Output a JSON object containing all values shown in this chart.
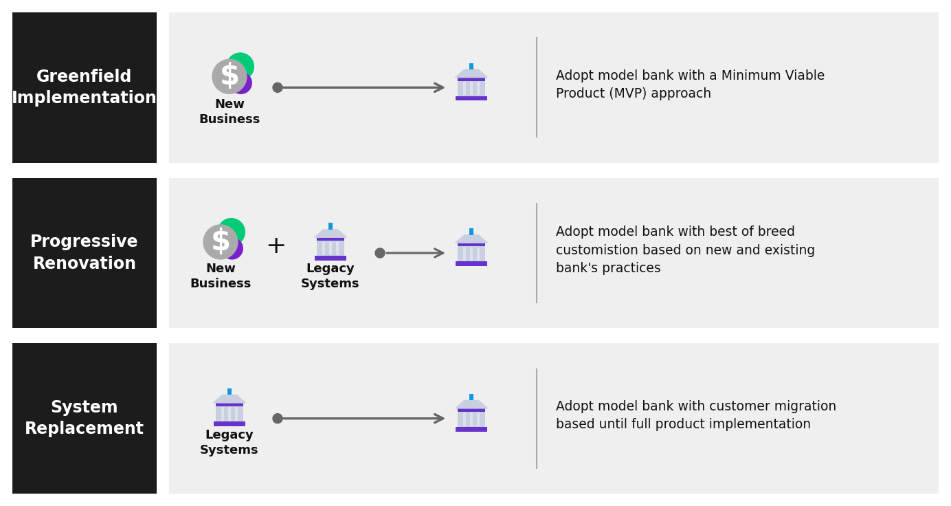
{
  "bg_color": "#ffffff",
  "row_bg_color": "#efefef",
  "label_bg_color": "#1c1c1c",
  "rows": [
    {
      "label": "Greenfield\nImplementation",
      "left_items": [
        {
          "type": "new_business",
          "label": "New\nBusiness"
        }
      ],
      "description": "Adopt model bank with a Minimum Viable\nProduct (MVP) approach"
    },
    {
      "label": "Progressive\nRenovation",
      "left_items": [
        {
          "type": "new_business",
          "label": "New\nBusiness"
        },
        {
          "type": "plus"
        },
        {
          "type": "legacy",
          "label": "Legacy\nSystems"
        }
      ],
      "description": "Adopt model bank with best of breed\ncustomistion based on new and existing\nbank's practices"
    },
    {
      "label": "System\nReplacement",
      "left_items": [
        {
          "type": "legacy",
          "label": "Legacy\nSystems"
        }
      ],
      "description": "Adopt model bank with customer migration\nbased until full product implementation"
    }
  ],
  "arrow_color": "#666666",
  "text_color_dark": "#111111",
  "text_color_light": "#ffffff",
  "divider_color": "#aaaaaa",
  "bank_body_color": "#c8cfe0",
  "bank_pillar_light": "#dde2ee",
  "bank_accent_color": "#6633cc",
  "bank_top_color": "#1199dd",
  "coin_gray": "#aaaaaa",
  "coin_green": "#00cc77",
  "coin_purple": "#7722cc",
  "label_font_size": 17,
  "desc_font_size": 13.5,
  "icon_label_font_size": 13
}
